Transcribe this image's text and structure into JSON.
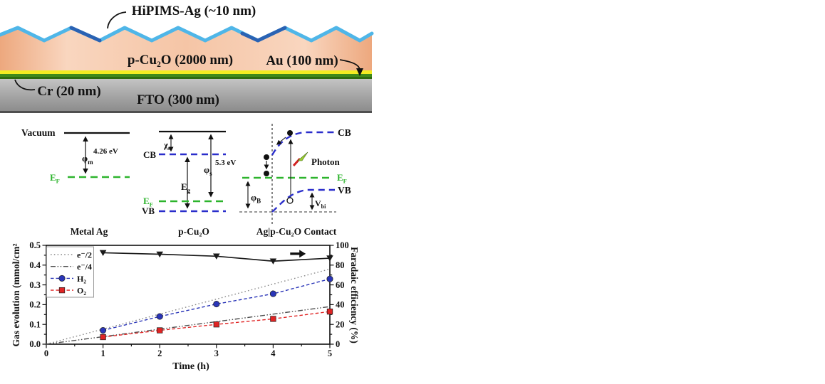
{
  "device_schematic": {
    "title": "HiPIMS-Ag (~10 nm)",
    "layers": {
      "cu2o": "p-Cu₂O (2000 nm)",
      "au": "Au (100 nm)",
      "cr": "Cr (20 nm)",
      "fto": "FTO (300 nm)"
    },
    "colors": {
      "ag_light": "#4fb6e8",
      "ag_dark": "#2a62b3",
      "cu2o_edge": "#eda87e",
      "cu2o_center": "#f9d6bf",
      "au": "#f3ec22",
      "cr": "#3f8a1b",
      "fto_top": "#c4c4c4",
      "fto_bottom": "#8b8b8b"
    }
  },
  "band_diagrams": {
    "metal_ag": {
      "vacuum": "Vacuum",
      "phi": "φ",
      "phi_sub": "m",
      "phi_sup": "4.26 eV",
      "ef": "E",
      "ef_sub": "F",
      "caption": "Metal Ag"
    },
    "p_cu2o": {
      "cb": "CB",
      "vb": "VB",
      "chi": "χ",
      "chi_sub": "s",
      "eg": "E",
      "eg_sub": "g",
      "phi": "φ",
      "phi_sub": "s",
      "phi_sup": "5.3 eV",
      "ef": "E",
      "ef_sub": "F",
      "caption": "p-Cu₂O"
    },
    "contact": {
      "cb": "CB",
      "vb": "VB",
      "ef": "E",
      "ef_sub": "F",
      "phi": "φ",
      "phi_sub": "B",
      "vbi": "V",
      "vbi_sub": "bi",
      "photon": "Photon",
      "caption": "Ag|p-Cu₂O Contact"
    },
    "colors": {
      "fermi_green": "#2db42d",
      "band_blue": "#2a2ecb"
    }
  },
  "chart_data": {
    "type": "line",
    "xlabel": "Time (h)",
    "ylabel_left": "Gas evolution (mmol/cm²",
    "ylabel_right": "Faradaic efficiency (%)",
    "xlim": [
      0,
      5
    ],
    "ylim_left": [
      0,
      0.5
    ],
    "ylim_right": [
      0,
      100
    ],
    "x_ticks": [
      0,
      1,
      2,
      3,
      4,
      5
    ],
    "y_ticks_left": [
      "0.0",
      "0.1",
      "0.2",
      "0.3",
      "0.4",
      "0.5"
    ],
    "y_tick_values_left": [
      0,
      0.1,
      0.2,
      0.3,
      0.4,
      0.5
    ],
    "y_ticks_right": [
      0,
      20,
      40,
      60,
      80,
      100
    ],
    "grid": false,
    "legend_position": "upper-left",
    "legend": [
      "e⁻/2",
      "e⁻/4",
      "H₂",
      "O₂"
    ],
    "series": [
      {
        "name": "e⁻/2",
        "axis": "left",
        "style": "dotted",
        "color": "#8a8a8a",
        "marker": "none",
        "x": [
          0,
          5
        ],
        "y": [
          0,
          0.38
        ]
      },
      {
        "name": "e⁻/4",
        "axis": "left",
        "style": "dashdotdot",
        "color": "#4d4d4d",
        "marker": "none",
        "x": [
          0,
          5
        ],
        "y": [
          0,
          0.19
        ]
      },
      {
        "name": "H₂",
        "axis": "left",
        "style": "dashed",
        "color": "#2a35b8",
        "marker": "circle",
        "x": [
          1,
          2,
          3,
          4,
          5
        ],
        "y": [
          0.07,
          0.14,
          0.203,
          0.255,
          0.33
        ]
      },
      {
        "name": "O₂",
        "axis": "left",
        "style": "dashed",
        "color": "#e02424",
        "marker": "square",
        "x": [
          1,
          2,
          3,
          4,
          5
        ],
        "y": [
          0.036,
          0.07,
          0.1,
          0.128,
          0.165
        ]
      },
      {
        "name": "Faradaic efficiency",
        "axis": "right",
        "style": "solid",
        "color": "#1a1a1a",
        "marker": "triangle-down",
        "x": [
          1,
          2,
          3,
          4,
          5
        ],
        "y": [
          92.5,
          91,
          89,
          84,
          87
        ]
      }
    ],
    "right_axis_arrow": {
      "x_start": 4.3,
      "x_end": 4.55,
      "y_right": 91.5
    }
  }
}
